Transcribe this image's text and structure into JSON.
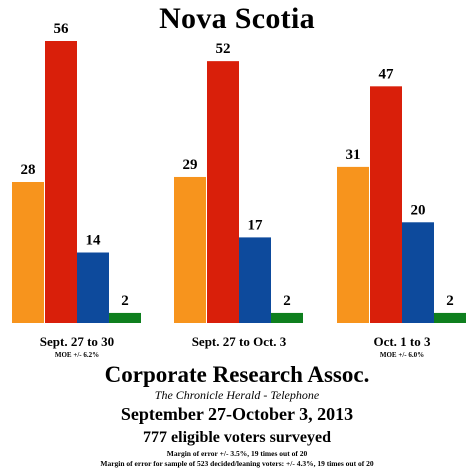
{
  "title": "Nova Scotia",
  "footer": {
    "org": "Corporate Research Assoc.",
    "sponsor": "The Chronicle Herald - Telephone",
    "dates": "September 27-October 3, 2013",
    "voters": "777 eligible voters surveyed",
    "moe_line1": "Margin of error +/- 3.5%, 19 times out of 20",
    "moe_line2": "Margin of error for sample of 523 decided/leaning voters: +/- 4.3%, 19 times out of 20"
  },
  "colors": [
    "#f7941d",
    "#d91f0a",
    "#0d4a9c",
    "#0e7f1e"
  ],
  "chart_data": {
    "type": "bar",
    "title": "Nova Scotia",
    "categories": [
      "Sept. 27 to 30",
      "Sept. 27 to Oct. 3",
      "Oct. 1 to 3"
    ],
    "category_notes": [
      "MOE +/- 6.2%",
      "",
      "MOE +/- 6.0%"
    ],
    "series": [
      {
        "values": [
          28,
          29,
          31
        ]
      },
      {
        "values": [
          56,
          52,
          47
        ]
      },
      {
        "values": [
          14,
          17,
          20
        ]
      },
      {
        "values": [
          2,
          2,
          2
        ]
      }
    ],
    "ylim": [
      0,
      60
    ],
    "grid": false,
    "legend": "none"
  }
}
